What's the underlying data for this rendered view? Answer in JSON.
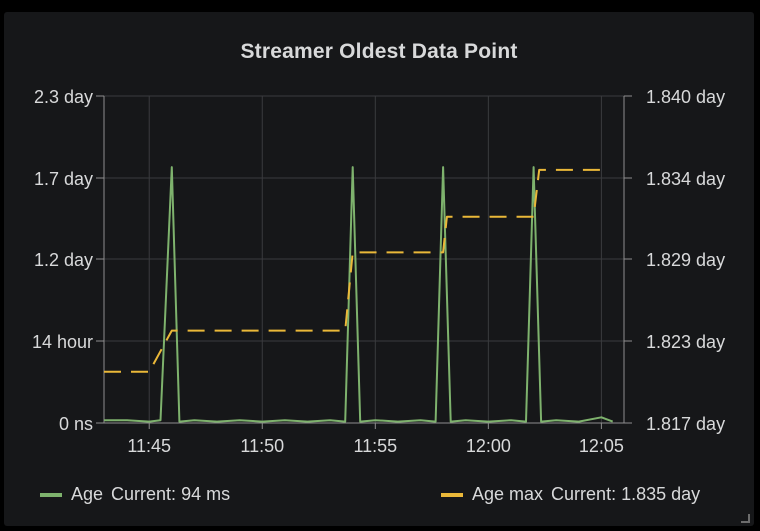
{
  "chart_data": {
    "type": "line",
    "title": "Streamer Oldest Data Point",
    "x_ticks": [
      "11:45",
      "11:50",
      "11:55",
      "12:00",
      "12:05"
    ],
    "x_range": [
      "11:43",
      "12:06"
    ],
    "y_left": {
      "tick_labels": [
        "0 ns",
        "14 hour",
        "1.2 day",
        "1.7 day",
        "2.3 day"
      ],
      "range_day": [
        0,
        2.3
      ]
    },
    "y_right": {
      "tick_labels": [
        "1.817 day",
        "1.823 day",
        "1.829 day",
        "1.834 day",
        "1.840 day"
      ],
      "range_day": [
        1.817,
        1.84
      ]
    },
    "grid": true,
    "legend_placement": "bottom",
    "series": [
      {
        "name": "Age",
        "axis": "left",
        "color": "#7eb26d",
        "style": "solid",
        "current": "94 ms",
        "points": [
          [
            "11:43",
            0.02
          ],
          [
            "11:44",
            0.02
          ],
          [
            "11:45",
            0.01
          ],
          [
            "11:45:30",
            0.02
          ],
          [
            "11:46",
            1.8
          ],
          [
            "11:46:20",
            0.01
          ],
          [
            "11:47",
            0.02
          ],
          [
            "11:48",
            0.01
          ],
          [
            "11:49",
            0.02
          ],
          [
            "11:50",
            0.01
          ],
          [
            "11:51",
            0.02
          ],
          [
            "11:52",
            0.01
          ],
          [
            "11:53",
            0.02
          ],
          [
            "11:53:40",
            0.01
          ],
          [
            "11:54",
            1.8
          ],
          [
            "11:54:20",
            0.01
          ],
          [
            "11:55",
            0.02
          ],
          [
            "11:56",
            0.01
          ],
          [
            "11:57",
            0.02
          ],
          [
            "11:57:40",
            0.01
          ],
          [
            "11:58",
            1.8
          ],
          [
            "11:58:20",
            0.01
          ],
          [
            "11:59",
            0.02
          ],
          [
            "12:00",
            0.01
          ],
          [
            "12:01",
            0.02
          ],
          [
            "12:01:40",
            0.01
          ],
          [
            "12:02",
            1.8
          ],
          [
            "12:02:20",
            0.01
          ],
          [
            "12:03",
            0.02
          ],
          [
            "12:04",
            0.01
          ],
          [
            "12:05",
            0.04
          ],
          [
            "12:05:30",
            0.01
          ]
        ]
      },
      {
        "name": "Age max",
        "axis": "right",
        "color": "#eab839",
        "style": "dashed",
        "current": "1.835 day",
        "points": [
          [
            "11:43",
            1.8206
          ],
          [
            "11:45",
            1.8206
          ],
          [
            "11:46",
            1.8235
          ],
          [
            "11:53:40",
            1.8235
          ],
          [
            "11:54",
            1.829
          ],
          [
            "11:58",
            1.829
          ],
          [
            "11:58:10",
            1.8315
          ],
          [
            "12:02",
            1.8315
          ],
          [
            "12:02:15",
            1.8348
          ],
          [
            "12:05",
            1.8348
          ]
        ]
      }
    ]
  }
}
